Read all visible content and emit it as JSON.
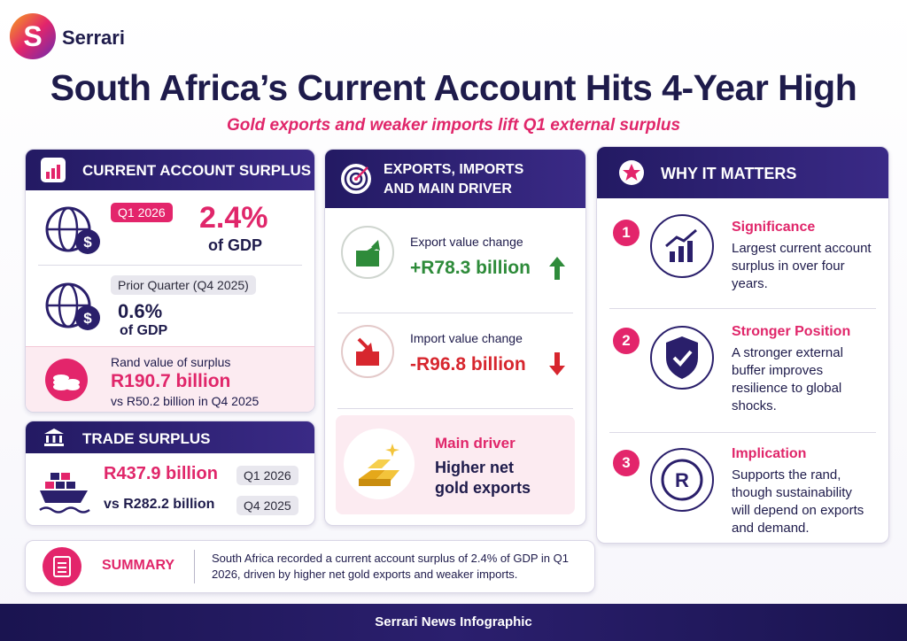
{
  "brand": "Serrari",
  "title": "South Africa’s Current Account Hits 4-Year High",
  "subtitle": "Gold exports and weaker imports lift Q1 external surplus",
  "current_account": {
    "heading": "CURRENT ACCOUNT SURPLUS",
    "current": {
      "badge": "Q1 2026",
      "value": "2.4%",
      "unit": "of GDP"
    },
    "prior": {
      "badge": "Prior Quarter (Q4 2025)",
      "value": "0.6%",
      "unit": "of GDP"
    },
    "rand": {
      "label": "Rand value of surplus",
      "value": "R190.7 billion",
      "comparison": "vs R50.2 billion in Q4 2025"
    }
  },
  "trade_surplus": {
    "heading": "TRADE SURPLUS",
    "current": {
      "value": "R437.9 billion",
      "badge": "Q1 2026"
    },
    "prior": {
      "value": "vs R282.2 billion",
      "badge": "Q4 2025"
    }
  },
  "drivers": {
    "heading": "EXPORTS, IMPORTS AND MAIN DRIVER",
    "export": {
      "label": "Export value change",
      "value": "+R78.3 billion"
    },
    "import": {
      "label": "Import value change",
      "value": "-R96.8 billion"
    },
    "main": {
      "label": "Main driver",
      "text": "Higher net gold exports"
    }
  },
  "why": {
    "heading": "WHY IT MATTERS",
    "items": [
      {
        "number": "1",
        "title": "Significance",
        "text": "Largest current account surplus in over four years."
      },
      {
        "number": "2",
        "title": "Stronger Position",
        "text": "A stronger external buffer improves resilience to global shocks."
      },
      {
        "number": "3",
        "title": "Implication",
        "text": "Supports the rand, though sustainability will depend on exports and demand."
      }
    ]
  },
  "summary": {
    "label": "SUMMARY",
    "text": "South Africa recorded a current account surplus of 2.4% of GDP in Q1 2026, driven by higher net gold exports and weaker imports."
  },
  "footer": "Serrari News Infographic"
}
